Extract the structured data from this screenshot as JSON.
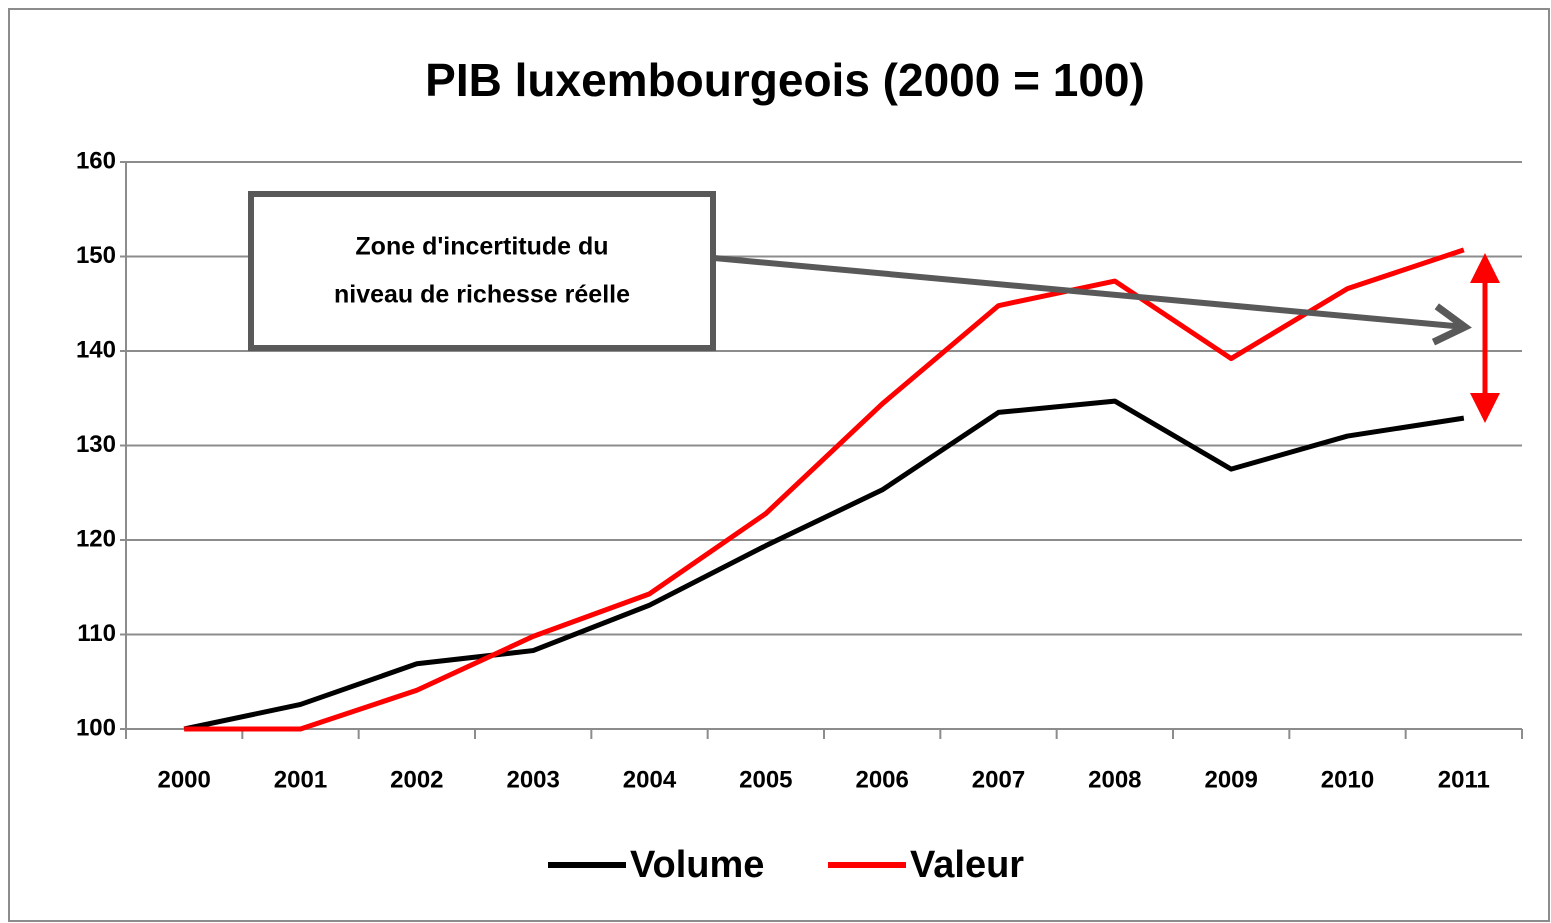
{
  "chart_data": {
    "type": "line",
    "title": "PIB luxembourgeois (2000 = 100)",
    "categories": [
      "2000",
      "2001",
      "2002",
      "2003",
      "2004",
      "2005",
      "2006",
      "2007",
      "2008",
      "2009",
      "2010",
      "2011"
    ],
    "series": [
      {
        "name": "Volume",
        "color": "#000000",
        "values": [
          100,
          102.6,
          106.9,
          108.3,
          113.1,
          119.4,
          125.3,
          133.5,
          134.7,
          127.5,
          131.0,
          132.9
        ]
      },
      {
        "name": "Valeur",
        "color": "#ff0000",
        "values": [
          100,
          100,
          104.1,
          109.8,
          114.3,
          122.8,
          134.4,
          144.8,
          147.4,
          139.2,
          146.6,
          150.7
        ]
      }
    ],
    "ylim": [
      100,
      160
    ],
    "yticks": [
      100,
      110,
      120,
      130,
      140,
      150,
      160
    ],
    "grid": true,
    "legend": "bottom",
    "annotation": [
      "Zone d'incertitude du",
      "niveau de richesse réelle"
    ]
  }
}
